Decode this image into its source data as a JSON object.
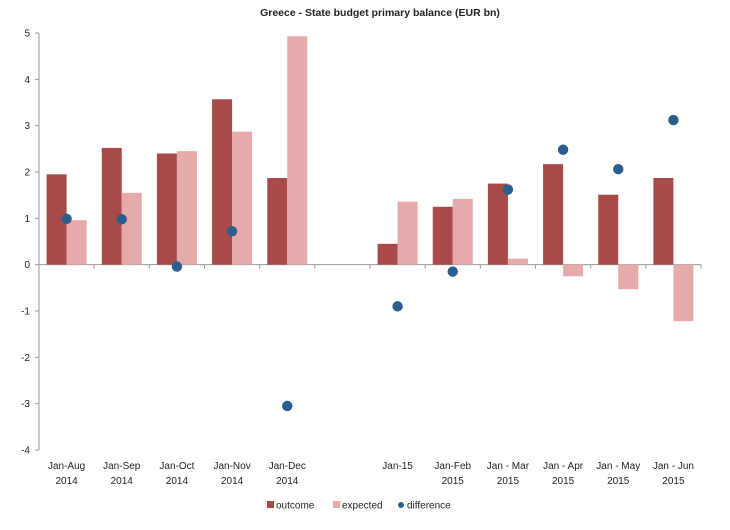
{
  "chart_data": {
    "type": "bar",
    "title": "Greece - State budget primary balance (EUR bn)",
    "xlabel": "",
    "ylabel": "",
    "ylim": [
      -4,
      5
    ],
    "yticks": [
      5,
      4,
      3,
      2,
      1,
      0,
      -1,
      -2,
      -3,
      -4
    ],
    "grid": false,
    "legend_position": "bottom",
    "categories": [
      [
        "Jan-Aug",
        "2014"
      ],
      [
        "Jan-Sep",
        "2014"
      ],
      [
        "Jan-Oct",
        "2014"
      ],
      [
        "Jan-Nov",
        "2014"
      ],
      [
        "Jan-Dec",
        "2014"
      ],
      [
        "",
        ""
      ],
      [
        "Jan-15",
        ""
      ],
      [
        "Jan-Feb",
        "2015"
      ],
      [
        "Jan - Mar",
        "2015"
      ],
      [
        "Jan - Apr",
        "2015"
      ],
      [
        "Jan - May",
        "2015"
      ],
      [
        "Jan - Jun",
        "2015"
      ]
    ],
    "series": [
      {
        "name": "outcome",
        "kind": "bar",
        "color": "#a84a4a",
        "values": [
          1.95,
          2.52,
          2.4,
          3.57,
          1.87,
          null,
          0.45,
          1.25,
          1.75,
          2.17,
          1.51,
          1.87
        ]
      },
      {
        "name": "expected",
        "kind": "bar",
        "color": "#e6aaaa",
        "values": [
          0.96,
          1.55,
          2.45,
          2.87,
          4.93,
          null,
          1.36,
          1.42,
          0.13,
          -0.25,
          -0.53,
          -1.22
        ]
      },
      {
        "name": "difference",
        "kind": "scatter",
        "color": "#2a5e8c",
        "values": [
          0.99,
          0.98,
          -0.04,
          0.72,
          -3.05,
          null,
          -0.9,
          -0.15,
          1.62,
          2.48,
          2.06,
          3.12
        ]
      }
    ]
  }
}
